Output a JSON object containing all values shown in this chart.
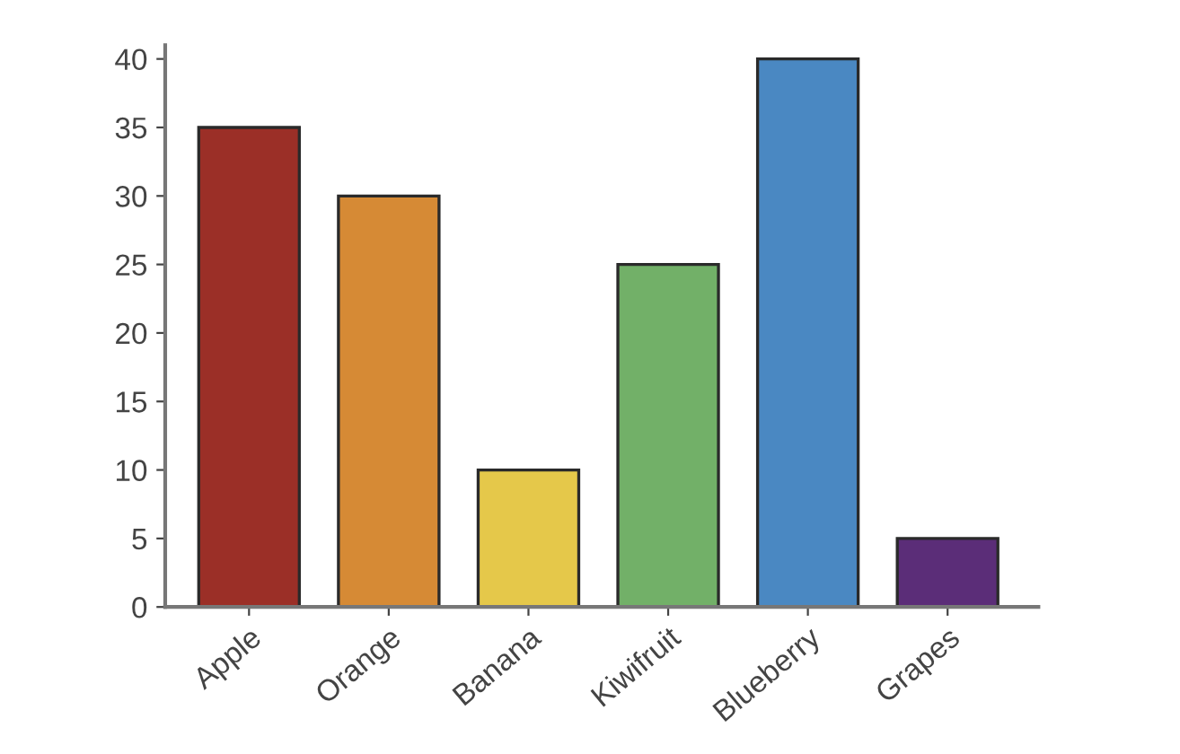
{
  "chart_data": {
    "type": "bar",
    "categories": [
      "Apple",
      "Orange",
      "Banana",
      "Kiwifruit",
      "Blueberry",
      "Grapes"
    ],
    "values": [
      35,
      30,
      10,
      25,
      40,
      5
    ],
    "colors": [
      "#9b2f27",
      "#d68a35",
      "#e5c84a",
      "#72b068",
      "#4a88c2",
      "#5b2d78"
    ],
    "ylim": [
      0,
      41
    ],
    "yticks": [
      0,
      5,
      10,
      15,
      20,
      25,
      30,
      35,
      40
    ],
    "grid": false
  }
}
